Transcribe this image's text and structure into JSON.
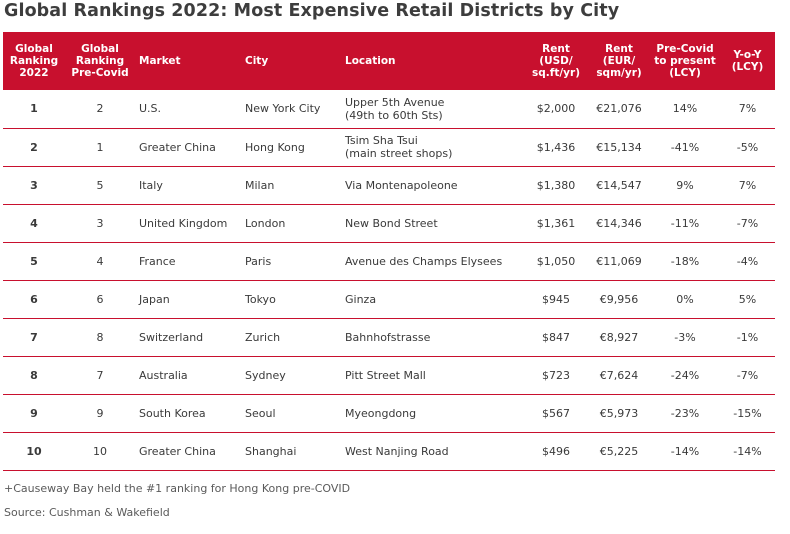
{
  "title": "Global Rankings 2022: Most Expensive Retail Districts by City",
  "colors": {
    "accent": "#c8102e",
    "header_text": "#ffffff"
  },
  "headers": {
    "rank2022": [
      "Global",
      "Ranking",
      "2022"
    ],
    "rank_pre": [
      "Global",
      "Ranking",
      "Pre-Covid"
    ],
    "market": [
      "Market"
    ],
    "city": [
      "City"
    ],
    "location": [
      "Location"
    ],
    "rent_usd": [
      "Rent",
      "(USD/",
      "sq.ft/yr)"
    ],
    "rent_eur": [
      "Rent",
      "(EUR/",
      "sqm/yr)"
    ],
    "precovid": [
      "Pre-Covid",
      "to present",
      "(LCY)"
    ],
    "yoy": [
      "Y-o-Y",
      "(LCY)"
    ]
  },
  "rows": [
    {
      "rank": "1",
      "pre": "2",
      "market": "U.S.",
      "city": "New York City",
      "location": [
        "Upper 5th Avenue",
        "(49th to 60th Sts)"
      ],
      "usd": "$2,000",
      "eur": "€21,076",
      "pc": "14%",
      "yoy": "7%"
    },
    {
      "rank": "2",
      "pre": "1",
      "market": "Greater China",
      "city": "Hong Kong",
      "location": [
        "Tsim Sha Tsui",
        "(main street shops)"
      ],
      "usd": "$1,436",
      "eur": "€15,134",
      "pc": "-41%",
      "yoy": "-5%"
    },
    {
      "rank": "3",
      "pre": "5",
      "market": "Italy",
      "city": "Milan",
      "location": [
        "Via Montenapoleone"
      ],
      "usd": "$1,380",
      "eur": "€14,547",
      "pc": "9%",
      "yoy": "7%"
    },
    {
      "rank": "4",
      "pre": "3",
      "market": "United Kingdom",
      "city": "London",
      "location": [
        "New Bond Street"
      ],
      "usd": "$1,361",
      "eur": "€14,346",
      "pc": "-11%",
      "yoy": "-7%"
    },
    {
      "rank": "5",
      "pre": "4",
      "market": "France",
      "city": "Paris",
      "location": [
        "Avenue des Champs Elysees"
      ],
      "usd": "$1,050",
      "eur": "€11,069",
      "pc": "-18%",
      "yoy": "-4%"
    },
    {
      "rank": "6",
      "pre": "6",
      "market": "Japan",
      "city": "Tokyo",
      "location": [
        "Ginza"
      ],
      "usd": "$945",
      "eur": "€9,956",
      "pc": "0%",
      "yoy": "5%"
    },
    {
      "rank": "7",
      "pre": "8",
      "market": "Switzerland",
      "city": "Zurich",
      "location": [
        "Bahnhofstrasse"
      ],
      "usd": "$847",
      "eur": "€8,927",
      "pc": "-3%",
      "yoy": "-1%"
    },
    {
      "rank": "8",
      "pre": "7",
      "market": "Australia",
      "city": "Sydney",
      "location": [
        "Pitt Street Mall"
      ],
      "usd": "$723",
      "eur": "€7,624",
      "pc": "-24%",
      "yoy": "-7%"
    },
    {
      "rank": "9",
      "pre": "9",
      "market": "South Korea",
      "city": "Seoul",
      "location": [
        "Myeongdong"
      ],
      "usd": "$567",
      "eur": "€5,973",
      "pc": "-23%",
      "yoy": "-15%"
    },
    {
      "rank": "10",
      "pre": "10",
      "market": "Greater China",
      "city": "Shanghai",
      "location": [
        "West Nanjing Road"
      ],
      "usd": "$496",
      "eur": "€5,225",
      "pc": "-14%",
      "yoy": "-14%"
    }
  ],
  "footnote": "+Causeway Bay held the #1 ranking for Hong Kong pre-COVID",
  "source": "Source: Cushman & Wakefield"
}
